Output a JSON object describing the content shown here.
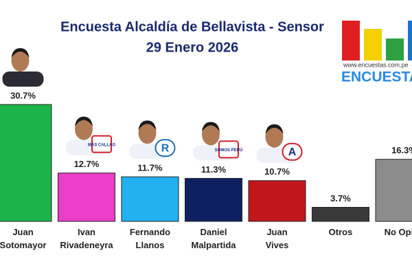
{
  "chart_data": {
    "type": "bar",
    "title": "Encuesta Alcaldía de Bellavista - Sensor",
    "subtitle": "29 Enero 2026",
    "source_url": "www.encuestas.com.pe",
    "brand": "ENCUESTAS",
    "categories": [
      "Juan\nSotomayor",
      "Ivan\nRivadeneyra",
      "Fernando\nLlanos",
      "Daniel\nMalpartida",
      "Juan\nVives",
      "Otros",
      "No Opina"
    ],
    "values": [
      30.7,
      12.7,
      11.7,
      11.3,
      10.7,
      3.7,
      16.3
    ],
    "value_labels": [
      "30.7%",
      "12.7%",
      "11.7%",
      "11.3%",
      "10.7%",
      "3.7%",
      "16.3%"
    ],
    "colors": [
      "#1db34a",
      "#e83ec8",
      "#22b0f0",
      "#0f2060",
      "#c0171c",
      "#3a3a3a",
      "#8c8c8c"
    ],
    "party_logos": [
      null,
      "MÁS CALLAO",
      "R",
      "SOMOS PERÚ",
      "A",
      null,
      null
    ]
  }
}
